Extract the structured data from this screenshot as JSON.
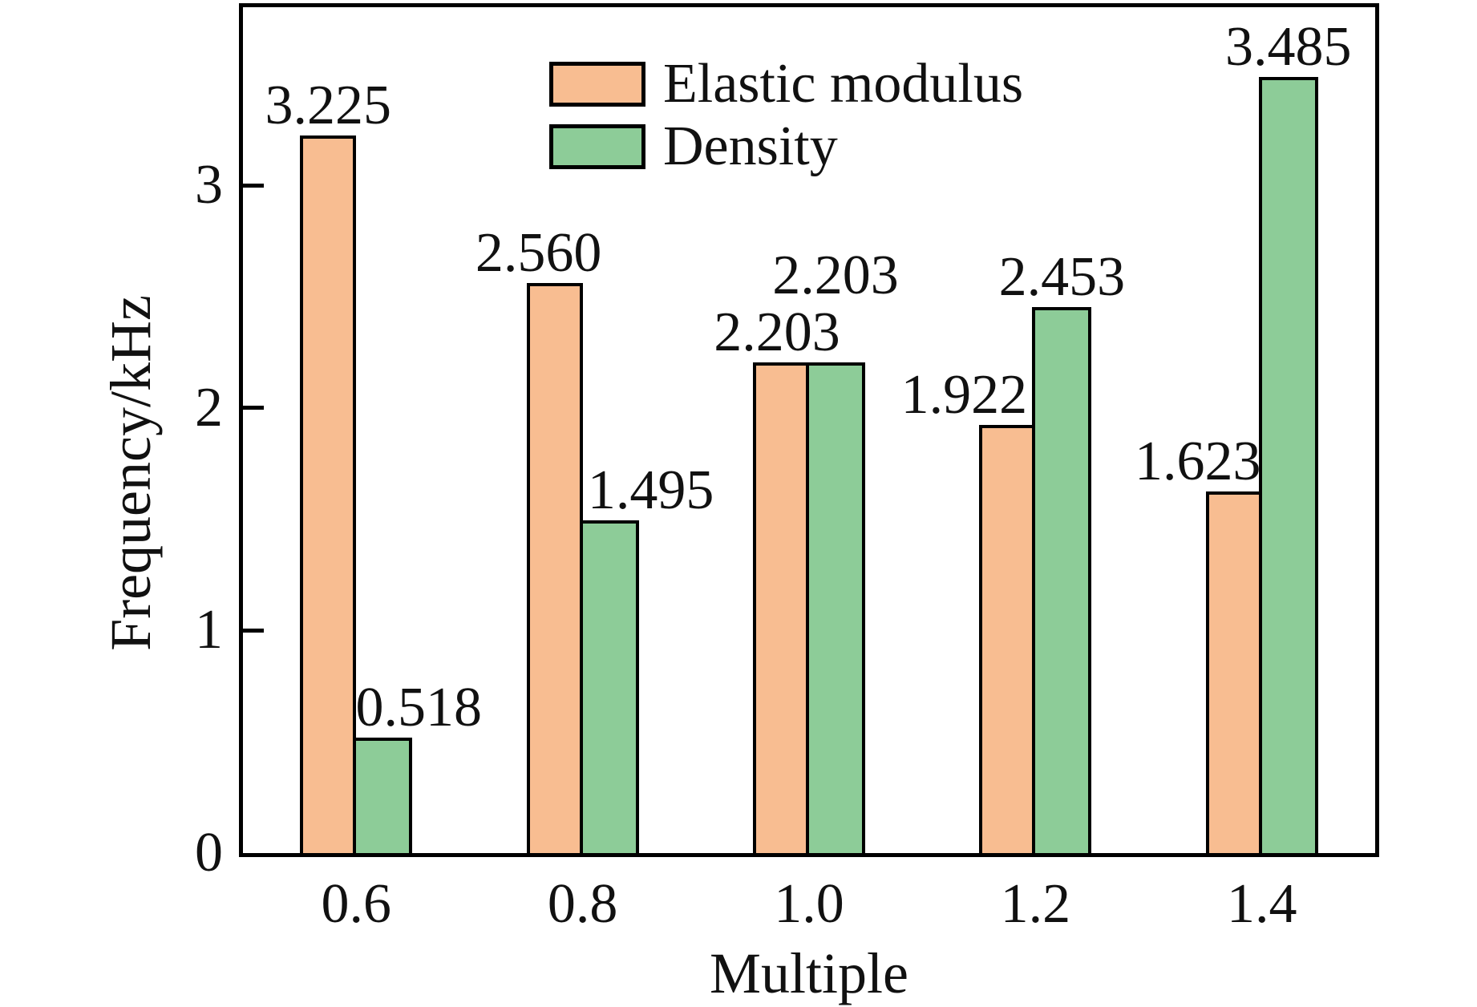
{
  "figure": {
    "background": "#ffffff",
    "text_color": "#111111",
    "frame_color": "#000000"
  },
  "legend": {
    "items": [
      {
        "label": "Elastic modulus",
        "color": "#F8BD91"
      },
      {
        "label": "Density",
        "color": "#8DCC98"
      }
    ]
  },
  "chart_data": {
    "type": "bar",
    "title": "",
    "xlabel": "Multiple",
    "ylabel": "Frequency/kHz",
    "categories": [
      "0.6",
      "0.8",
      "1.0",
      "1.2",
      "1.4"
    ],
    "series": [
      {
        "name": "Elastic modulus",
        "color": "#F8BD91",
        "values": [
          3.225,
          2.56,
          2.203,
          1.922,
          1.623
        ],
        "labels": [
          "3.225",
          "2.560",
          "2.203",
          "1.922",
          "1.623"
        ]
      },
      {
        "name": "Density",
        "color": "#8DCC98",
        "values": [
          0.518,
          1.495,
          2.203,
          2.453,
          3.485
        ],
        "labels": [
          "0.518",
          "1.495",
          "2.203",
          "2.453",
          "3.485"
        ]
      }
    ],
    "ylim": [
      0,
      3.8
    ],
    "yticks": [
      0,
      1,
      2,
      3
    ],
    "ytick_labels": [
      "0",
      "1",
      "2",
      "3"
    ],
    "grid": false,
    "legend_position": "upper-left-inside",
    "bar_edge_color": "#000000",
    "label_offsets": {
      "series0_dx": [
        0,
        -20,
        -5,
        -54,
        -45
      ],
      "series0_dy": [
        0,
        0,
        0,
        0,
        0
      ],
      "series1_dx": [
        45,
        52,
        0,
        0,
        0
      ],
      "series1_dy": [
        0,
        0,
        71,
        0,
        0
      ]
    }
  }
}
